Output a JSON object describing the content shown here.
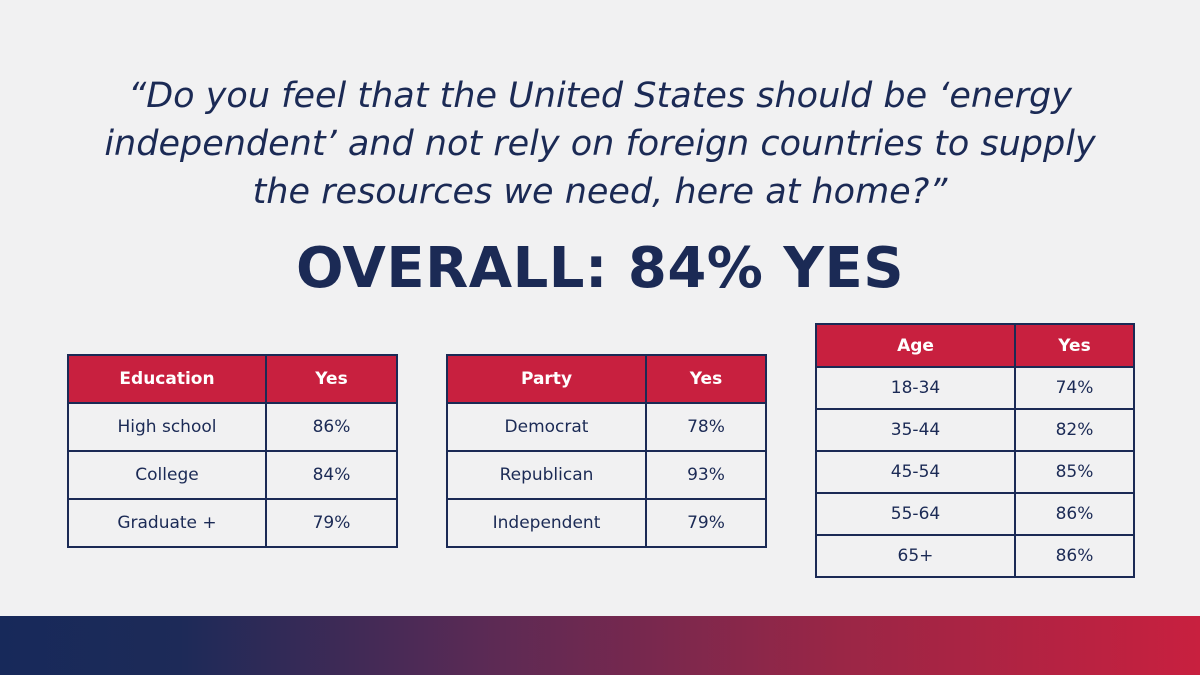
{
  "question": {
    "lines": [
      "“Do you feel that the United States should be ‘energy",
      "independent’ and not rely on foreign countries to supply",
      "the resources we need, here at home?”"
    ]
  },
  "overall": "OVERALL: 84% YES",
  "colors": {
    "navy": "#1b2a55",
    "red": "#c8203f",
    "background": "#f1f1f2"
  },
  "chart_data": [
    {
      "type": "table",
      "columns": [
        "Education",
        "Yes"
      ],
      "rows": [
        [
          "High school",
          "86%"
        ],
        [
          "College",
          "84%"
        ],
        [
          "Graduate +",
          "79%"
        ]
      ]
    },
    {
      "type": "table",
      "columns": [
        "Party",
        "Yes"
      ],
      "rows": [
        [
          "Democrat",
          "78%"
        ],
        [
          "Republican",
          "93%"
        ],
        [
          "Independent",
          "79%"
        ]
      ]
    },
    {
      "type": "table",
      "columns": [
        "Age",
        "Yes"
      ],
      "rows": [
        [
          "18-34",
          "74%"
        ],
        [
          "35-44",
          "82%"
        ],
        [
          "45-54",
          "85%"
        ],
        [
          "55-64",
          "86%"
        ],
        [
          "65+",
          "86%"
        ]
      ]
    }
  ]
}
